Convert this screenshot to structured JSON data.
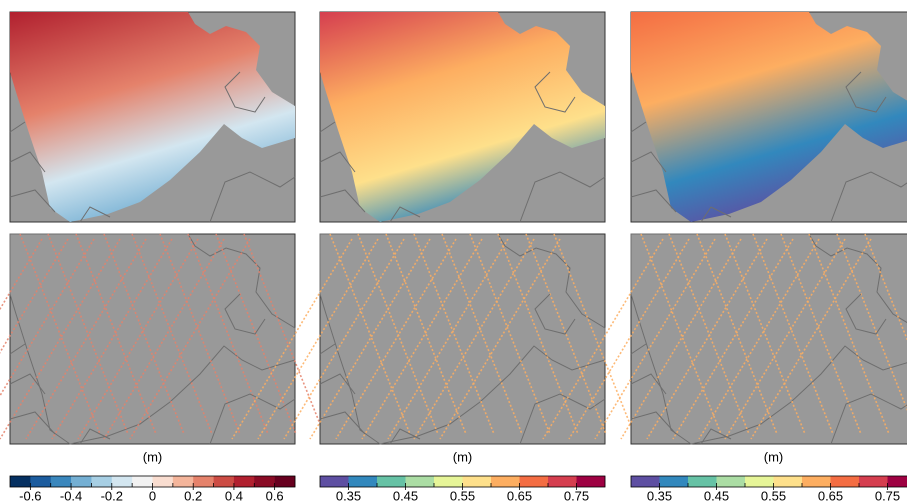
{
  "colorbars": [
    {
      "label": "(m)",
      "lim": [
        -0.7,
        0.7
      ],
      "ticks": [
        -0.6,
        -0.4,
        -0.2,
        0,
        0.2,
        0.4,
        0.6
      ],
      "colors": [
        "#053061",
        "#1c5c9e",
        "#3a87bd",
        "#74afd3",
        "#a7cfe4",
        "#d3e6f0",
        "#f2f2f2",
        "#f9ddd0",
        "#f4b59b",
        "#e5826b",
        "#cc4c44",
        "#b1202f",
        "#8a0b25",
        "#67001f"
      ]
    },
    {
      "label": "(m)",
      "lim": [
        0.3,
        0.8
      ],
      "ticks": [
        0.35,
        0.45,
        0.55,
        0.65,
        0.75
      ],
      "colors": [
        "#5e4fa2",
        "#3288bd",
        "#66c2a5",
        "#abdda4",
        "#e6f598",
        "#fee08b",
        "#fdae61",
        "#f46d43",
        "#d53e4f",
        "#9e0142"
      ]
    },
    {
      "label": "(m)",
      "lim": [
        0.3,
        0.8
      ],
      "ticks": [
        0.35,
        0.45,
        0.55,
        0.65,
        0.75
      ],
      "colors": [
        "#5e4fa2",
        "#3288bd",
        "#66c2a5",
        "#abdda4",
        "#e6f598",
        "#fee08b",
        "#fdae61",
        "#f46d43",
        "#d53e4f",
        "#9e0142"
      ]
    }
  ]
}
